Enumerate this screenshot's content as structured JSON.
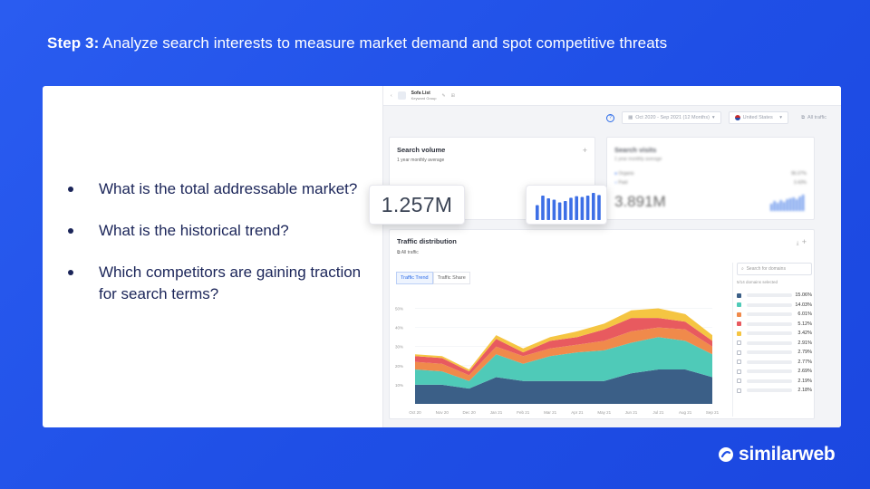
{
  "slide": {
    "title_bold": "Step 3:",
    "title_rest": " Analyze search interests to measure market demand and spot competitive threats",
    "bullets": [
      "What is the total addressable market?",
      "What is the historical trend?",
      "Which competitors are gaining traction for search terms?"
    ]
  },
  "brand": {
    "logo_text": "similarweb",
    "accent": "#1f4fe6"
  },
  "app": {
    "list_name": "Sofa List",
    "list_sub": "Keyword Group",
    "date_range": "Oct 2020 - Sep 2021 (12 Months)",
    "country": "United States",
    "traffic_filter": "All traffic",
    "search_volume": {
      "title": "Search volume",
      "subtitle": "1 year monthly average",
      "value": "1.257M",
      "bars": [
        0.55,
        0.9,
        0.8,
        0.75,
        0.65,
        0.7,
        0.82,
        0.88,
        0.85,
        0.9,
        1.0,
        0.92
      ]
    },
    "search_visits": {
      "title": "Search visits",
      "subtitle": "1 year monthly average",
      "value": "3.891M",
      "organic_label": "Organic",
      "organic_pct": "96.07%",
      "paid_label": "Paid",
      "paid_pct": "3.43%"
    },
    "traffic_distribution": {
      "title": "Traffic distribution",
      "subtitle": "All traffic",
      "tabs": [
        "Traffic Trend",
        "Traffic Share"
      ],
      "search_placeholder": "Search for domains",
      "selected_text": "5/14 domains selected"
    }
  },
  "chart_data": {
    "type": "area",
    "x": [
      "Oct 20",
      "Nov 20",
      "Dec 20",
      "Jan 21",
      "Feb 21",
      "Mar 21",
      "Apr 21",
      "May 21",
      "Jun 21",
      "Jul 21",
      "Aug 21",
      "Sep 21"
    ],
    "yticks": [
      "10%",
      "20%",
      "30%",
      "40%",
      "50%"
    ],
    "ylim": [
      0,
      55
    ],
    "series": [
      {
        "color": "#3b5f87",
        "values": [
          10,
          10,
          8,
          14,
          12,
          12,
          12,
          12,
          16,
          18,
          18,
          14
        ]
      },
      {
        "color": "#4fcab8",
        "values": [
          8,
          7,
          4,
          12,
          9,
          13,
          15,
          16,
          16,
          17,
          15,
          12
        ]
      },
      {
        "color": "#f08a4b",
        "values": [
          4,
          4,
          3,
          4,
          4,
          4,
          4,
          5,
          6,
          5,
          6,
          4
        ]
      },
      {
        "color": "#e85a5f",
        "values": [
          3,
          3,
          2,
          4,
          2,
          4,
          4,
          6,
          7,
          5,
          4,
          3
        ]
      },
      {
        "color": "#f5c542",
        "values": [
          1,
          1,
          1,
          2,
          2,
          2,
          3,
          3,
          4,
          5,
          4,
          3
        ]
      }
    ]
  },
  "legend": {
    "rows": [
      {
        "checked": true,
        "color": "#3b5f87",
        "value": "15.06%"
      },
      {
        "checked": true,
        "color": "#4fcab8",
        "value": "14.03%"
      },
      {
        "checked": true,
        "color": "#f08a4b",
        "value": "6.01%"
      },
      {
        "checked": true,
        "color": "#e85a5f",
        "value": "5.12%"
      },
      {
        "checked": true,
        "color": "#f5c542",
        "value": "3.42%"
      },
      {
        "checked": false,
        "color": "#ffffff",
        "value": "2.91%"
      },
      {
        "checked": false,
        "color": "#ffffff",
        "value": "2.79%"
      },
      {
        "checked": false,
        "color": "#ffffff",
        "value": "2.77%"
      },
      {
        "checked": false,
        "color": "#ffffff",
        "value": "2.69%"
      },
      {
        "checked": false,
        "color": "#ffffff",
        "value": "2.19%"
      },
      {
        "checked": false,
        "color": "#ffffff",
        "value": "2.18%"
      }
    ]
  }
}
